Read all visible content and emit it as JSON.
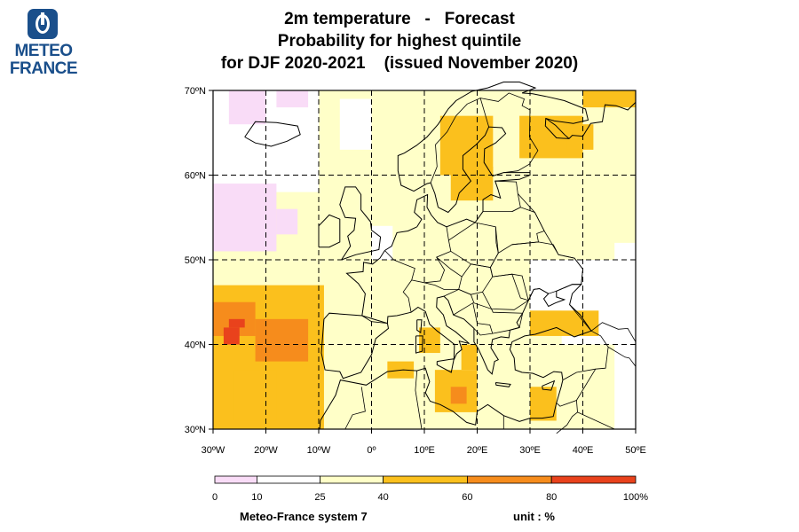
{
  "logo": {
    "line1": "METEO",
    "line2": "FRANCE"
  },
  "title": {
    "line1": "2m temperature   -   Forecast",
    "line2": "Probability for highest quintile",
    "line3": "for DJF 2020-2021    (issued November 2020)"
  },
  "map": {
    "lat_labels": [
      "70ºN",
      "60ºN",
      "50ºN",
      "40ºN",
      "30ºN"
    ],
    "lon_labels": [
      "30ºW",
      "20ºW",
      "10ºW",
      "0º",
      "10ºE",
      "20ºE",
      "30ºE",
      "40ºE",
      "50ºE"
    ],
    "extent": {
      "lon": [
        -30,
        50
      ],
      "lat": [
        30,
        70
      ]
    }
  },
  "colorbar": {
    "labels": [
      "0",
      "10",
      "25",
      "40",
      "60",
      "80",
      "100%"
    ],
    "bins": [
      {
        "from": 0,
        "to": 10,
        "color": "#f9dcf7"
      },
      {
        "from": 10,
        "to": 25,
        "color": "#ffffff"
      },
      {
        "from": 25,
        "to": 40,
        "color": "#ffffc8"
      },
      {
        "from": 40,
        "to": 60,
        "color": "#fbc01d"
      },
      {
        "from": 60,
        "to": 80,
        "color": "#f68c1c"
      },
      {
        "from": 80,
        "to": 100,
        "color": "#e9421c"
      }
    ]
  },
  "footer": {
    "model": "Meteo-France system 7",
    "unit": "unit : %"
  }
}
